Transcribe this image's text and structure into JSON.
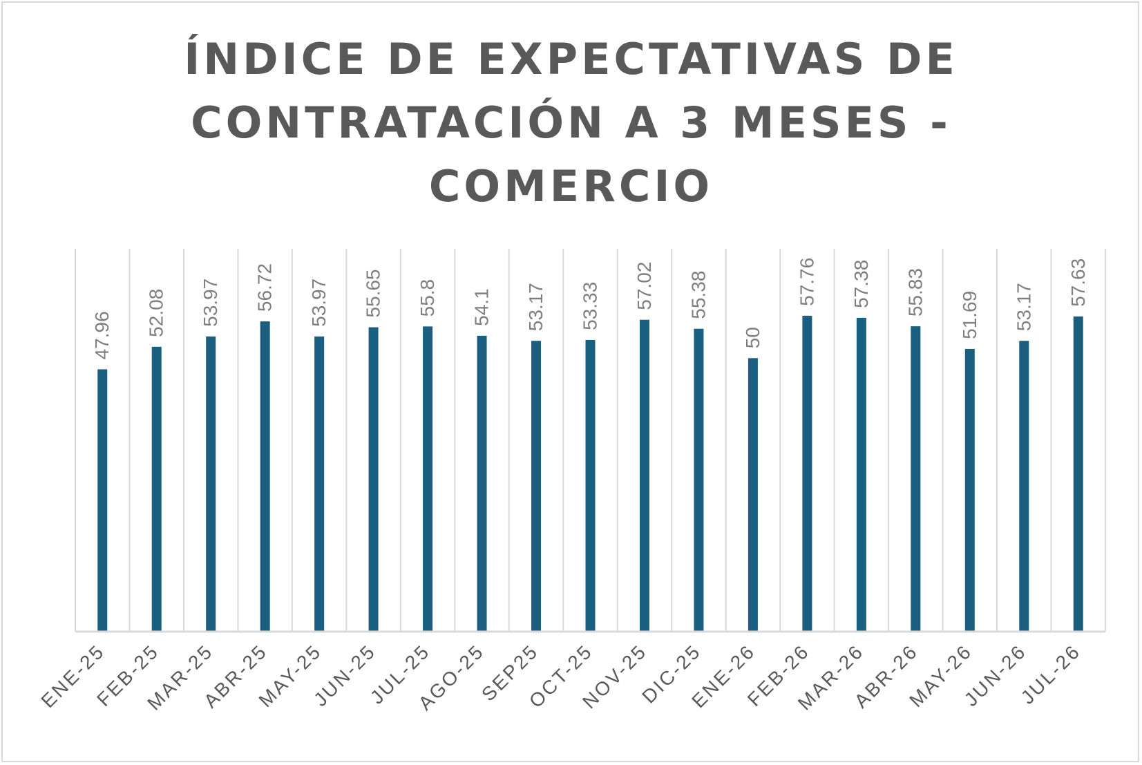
{
  "chart_data": {
    "type": "bar",
    "title_lines": [
      "ÍNDICE DE EXPECTATIVAS DE",
      "CONTRATACIÓN A 3 MESES -",
      "COMERCIO"
    ],
    "categories": [
      "ENE-25",
      "FEB-25",
      "MAR-25",
      "ABR-25",
      "MAY-25",
      "JUN-25",
      "JUL-25",
      "AGO-25",
      "SEP25",
      "OCT-25",
      "NOV-25",
      "DIC-25",
      "ENE-26",
      "FEB-26",
      "MAR-26",
      "ABR-26",
      "MAY-26",
      "JUN-26",
      "JUL-26"
    ],
    "values": [
      47.96,
      52.08,
      53.97,
      56.72,
      53.97,
      55.65,
      55.8,
      54.1,
      53.17,
      53.33,
      57.02,
      55.38,
      50,
      57.76,
      57.38,
      55.83,
      51.69,
      53.17,
      57.63
    ],
    "data_labels": [
      "47.96",
      "52.08",
      "53.97",
      "56.72",
      "53.97",
      "55.65",
      "55.8",
      "54.1",
      "53.17",
      "53.33",
      "57.02",
      "55.38",
      "50",
      "57.76",
      "57.38",
      "55.83",
      "51.69",
      "53.17",
      "57.63"
    ],
    "ylim": [
      0,
      70
    ],
    "grid": "vertical",
    "legend": "none",
    "colors": {
      "bar": "#1a5e80",
      "grid": "#d9d9d9",
      "axis": "#d9d9d9",
      "label": "#7f7f7f",
      "tick": "#595959",
      "title": "#595959"
    }
  }
}
